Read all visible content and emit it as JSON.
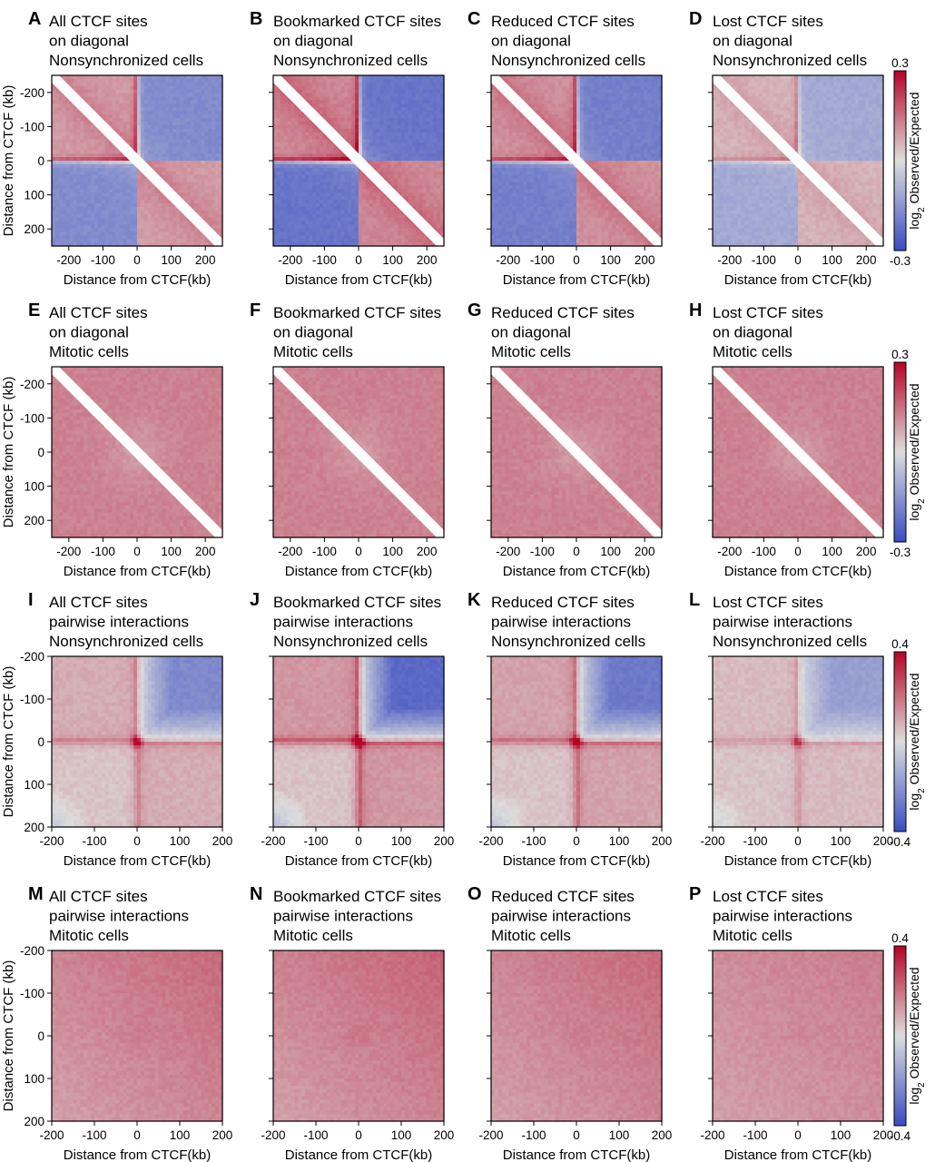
{
  "figure": {
    "colormap": {
      "low": "#3a4cc0",
      "mid": "#dddddd",
      "high": "#b40426"
    },
    "panels": [
      {
        "letter": "A",
        "title": [
          "All CTCF sites",
          "on diagonal",
          "Nonsynchronized cells"
        ],
        "kind": "diag",
        "stage": "nonsync",
        "strength": 0.78
      },
      {
        "letter": "B",
        "title": [
          "Bookmarked CTCF sites",
          "on diagonal",
          "Nonsynchronized cells"
        ],
        "kind": "diag",
        "stage": "nonsync",
        "strength": 1.0
      },
      {
        "letter": "C",
        "title": [
          "Reduced CTCF sites",
          "on diagonal",
          "Nonsynchronized cells"
        ],
        "kind": "diag",
        "stage": "nonsync",
        "strength": 0.9
      },
      {
        "letter": "D",
        "title": [
          "Lost CTCF sites",
          "on diagonal",
          "Nonsynchronized cells"
        ],
        "kind": "diag",
        "stage": "nonsync",
        "strength": 0.5
      },
      {
        "letter": "E",
        "title": [
          "All CTCF sites",
          "on diagonal",
          "Mitotic cells"
        ],
        "kind": "diag",
        "stage": "mitotic",
        "strength": 0.05
      },
      {
        "letter": "F",
        "title": [
          "Bookmarked CTCF sites",
          "on diagonal",
          "Mitotic cells"
        ],
        "kind": "diag",
        "stage": "mitotic",
        "strength": 0.12
      },
      {
        "letter": "G",
        "title": [
          "Reduced CTCF sites",
          "on diagonal",
          "Mitotic cells"
        ],
        "kind": "diag",
        "stage": "mitotic",
        "strength": 0.05
      },
      {
        "letter": "H",
        "title": [
          "Lost CTCF sites",
          "on diagonal",
          "Mitotic cells"
        ],
        "kind": "diag",
        "stage": "mitotic",
        "strength": 0.03
      },
      {
        "letter": "I",
        "title": [
          "All CTCF sites",
          "pairwise interactions",
          "Nonsynchronized cells"
        ],
        "kind": "pair",
        "stage": "nonsync",
        "strength": 0.7
      },
      {
        "letter": "J",
        "title": [
          "Bookmarked CTCF sites",
          "pairwise interactions",
          "Nonsynchronized cells"
        ],
        "kind": "pair",
        "stage": "nonsync",
        "strength": 1.0
      },
      {
        "letter": "K",
        "title": [
          "Reduced CTCF sites",
          "pairwise interactions",
          "Nonsynchronized cells"
        ],
        "kind": "pair",
        "stage": "nonsync",
        "strength": 0.85
      },
      {
        "letter": "L",
        "title": [
          "Lost CTCF sites",
          "pairwise interactions",
          "Nonsynchronized cells"
        ],
        "kind": "pair",
        "stage": "nonsync",
        "strength": 0.5
      },
      {
        "letter": "M",
        "title": [
          "All CTCF sites",
          "pairwise interactions",
          "Mitotic cells"
        ],
        "kind": "pair",
        "stage": "mitotic",
        "strength": 0.9
      },
      {
        "letter": "N",
        "title": [
          "Bookmarked CTCF sites",
          "pairwise interactions",
          "Mitotic cells"
        ],
        "kind": "pair",
        "stage": "mitotic",
        "strength": 1.0
      },
      {
        "letter": "O",
        "title": [
          "Reduced CTCF sites",
          "pairwise interactions",
          "Mitotic cells"
        ],
        "kind": "pair",
        "stage": "mitotic",
        "strength": 0.9
      },
      {
        "letter": "P",
        "title": [
          "Lost CTCF sites",
          "pairwise interactions",
          "Mitotic cells"
        ],
        "kind": "pair",
        "stage": "mitotic",
        "strength": 0.6
      }
    ],
    "rows": [
      {
        "kind": "diag",
        "ticks": [
          -200,
          -100,
          0,
          100,
          200
        ],
        "tick_labels": [
          "-200",
          "-100",
          "0",
          "100",
          "200"
        ],
        "range": [
          -250,
          250
        ],
        "colorbar": {
          "max": "0.3",
          "min": "-0.3"
        }
      },
      {
        "kind": "diag",
        "ticks": [
          -200,
          -100,
          0,
          100,
          200
        ],
        "tick_labels": [
          "-200",
          "-100",
          "0",
          "100",
          "200"
        ],
        "range": [
          -250,
          250
        ],
        "colorbar": {
          "max": "0.3",
          "min": "-0.3"
        }
      },
      {
        "kind": "pair",
        "ticks": [
          -200,
          -100,
          0,
          100,
          200
        ],
        "tick_labels": [
          "-200",
          "-100",
          "0",
          "100",
          "200"
        ],
        "range": [
          -200,
          200
        ],
        "colorbar": {
          "max": "0.4",
          "min": "-0.4"
        }
      },
      {
        "kind": "pair",
        "ticks": [
          -200,
          -100,
          0,
          100,
          200
        ],
        "tick_labels": [
          "-200",
          "-100",
          "0",
          "100",
          "200"
        ],
        "range": [
          -200,
          200
        ],
        "colorbar": {
          "max": "0.4",
          "min": "-0.4"
        }
      }
    ],
    "xlabel": "Distance from CTCF(kb)",
    "ylabel": "Distance from CTCF (kb)",
    "colorbar_label": "log2 Observed/Expected"
  },
  "chart_data": {
    "type": "heatmap",
    "description_units": "log2 Observed/Expected",
    "panels": [
      "A",
      "B",
      "C",
      "D",
      "E",
      "F",
      "G",
      "H",
      "I",
      "J",
      "K",
      "L",
      "M",
      "N",
      "O",
      "P"
    ],
    "diagonal_panels": {
      "x_range_kb": [
        -250,
        250
      ],
      "y_range_kb": [
        -250,
        250
      ],
      "color_range": [
        -0.3,
        0.3
      ]
    },
    "pairwise_panels": {
      "x_range_kb": [
        -200,
        200
      ],
      "y_range_kb": [
        -200,
        200
      ],
      "color_range": [
        -0.4,
        0.4
      ]
    },
    "xlabel": "Distance from CTCF(kb)",
    "ylabel": "Distance from CTCF (kb)",
    "colorbar_label": "log2 Observed/Expected"
  }
}
